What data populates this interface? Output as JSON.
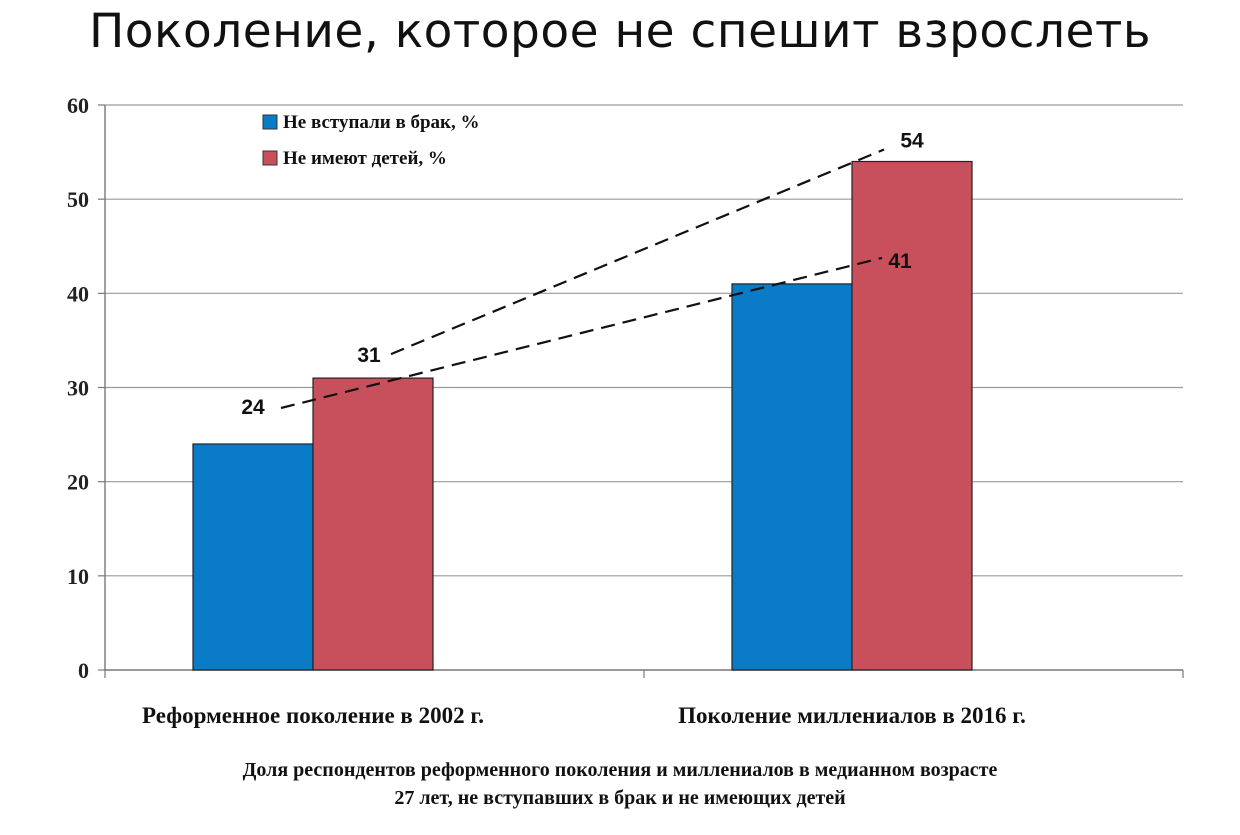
{
  "chart_data": {
    "type": "bar",
    "title": "Поколение, которое не спешит взрослеть",
    "categories": [
      "Реформенное поколение в 2002 г.",
      "Поколение миллениалов в 2016 г."
    ],
    "series": [
      {
        "name": "Не вступали в брак, %",
        "values": [
          24,
          41
        ],
        "color": "#0a7cc7"
      },
      {
        "name": "Не имеют детей, %",
        "values": [
          31,
          54
        ],
        "color": "#c8505c"
      }
    ],
    "ylim": [
      0,
      60
    ],
    "yticks": [
      0,
      10,
      20,
      30,
      40,
      50,
      60
    ],
    "grid": true,
    "legend_position": "top-left",
    "trend_lines": "dashed",
    "caption_lines": [
      "Доля респондентов реформенного поколения и миллениалов в медианном возрасте",
      "27 лет, не вступавших в брак и не имеющих детей"
    ]
  }
}
